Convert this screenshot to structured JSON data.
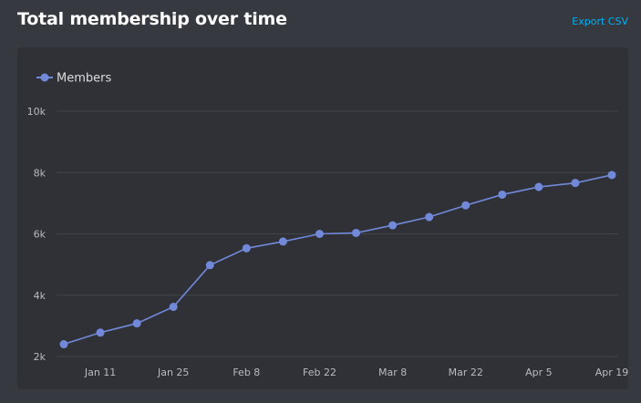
{
  "header": {
    "title": "Total membership over time",
    "export_label": "Export CSV"
  },
  "colors": {
    "background": "#36393f",
    "panel": "#2f3136",
    "series": "#7289da",
    "grid": "#40444b",
    "link": "#00b0f4"
  },
  "chart_data": {
    "type": "line",
    "title": "Total membership over time",
    "xlabel": "",
    "ylabel": "",
    "legend": "top-left",
    "grid": true,
    "y_ticks": [
      2000,
      4000,
      6000,
      8000,
      10000
    ],
    "y_tick_labels": [
      "2k",
      "4k",
      "6k",
      "8k",
      "10k"
    ],
    "ylim": [
      2000,
      10000
    ],
    "x_labels": [
      "Jan 11",
      "Jan 25",
      "Feb 8",
      "Feb 22",
      "Mar 8",
      "Mar 22",
      "Apr 5",
      "Apr 19"
    ],
    "x_label_indices": [
      1,
      3,
      5,
      7,
      9,
      11,
      13,
      15
    ],
    "series": [
      {
        "name": "Members",
        "values": [
          2400,
          2780,
          3080,
          3620,
          4980,
          5530,
          5750,
          6000,
          6030,
          6280,
          6550,
          6930,
          7280,
          7530,
          7660,
          7920
        ]
      }
    ]
  }
}
